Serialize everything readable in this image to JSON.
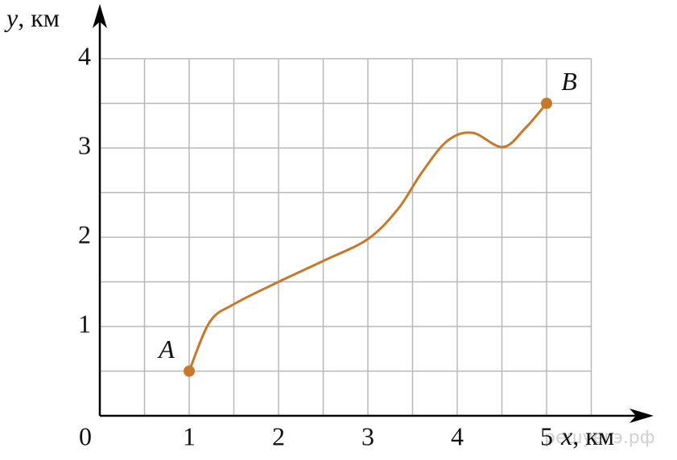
{
  "chart_data": {
    "type": "line",
    "x_label": {
      "var": "x",
      "unit": ", км"
    },
    "y_label": {
      "var": "y",
      "unit": ", км"
    },
    "xlim": [
      0,
      5.5
    ],
    "ylim": [
      0,
      4
    ],
    "xticks": [
      0,
      1,
      2,
      3,
      4,
      5
    ],
    "yticks": [
      1,
      2,
      3,
      4
    ],
    "grid": true,
    "grid_step": 0.5,
    "series": [
      {
        "color": "#c8782a",
        "x": [
          1,
          1.23,
          1.5,
          2,
          2.49,
          3,
          3.34,
          3.6,
          3.89,
          4.17,
          4.51,
          4.76,
          5
        ],
        "values": [
          0.5,
          1.05,
          1.25,
          1.5,
          1.73,
          1.98,
          2.32,
          2.72,
          3.08,
          3.17,
          3.01,
          3.22,
          3.5
        ],
        "point_labels": [
          "A",
          null,
          null,
          null,
          null,
          null,
          null,
          null,
          null,
          null,
          null,
          null,
          "B"
        ]
      }
    ],
    "watermark": "решуегэ.рф"
  }
}
